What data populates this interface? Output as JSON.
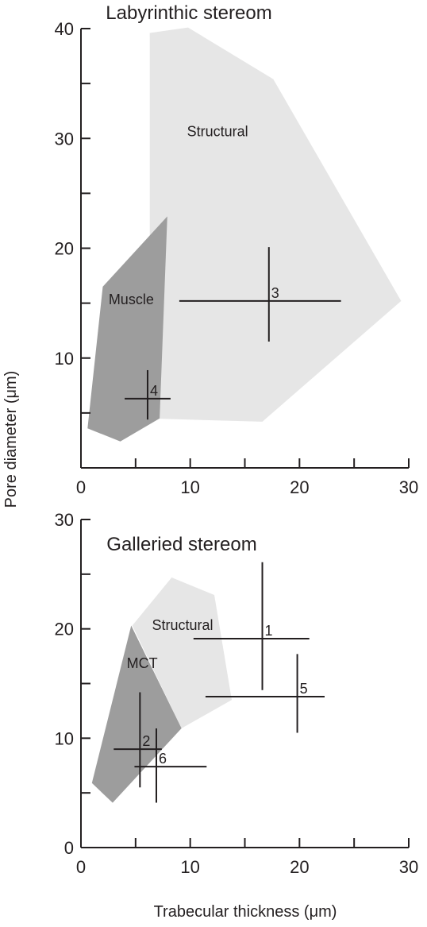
{
  "axis_labels": {
    "y": "Pore diameter (μm)",
    "x": "Trabecular thickness (μm)"
  },
  "colors": {
    "structural": "#e6e6e6",
    "muscle": "#9d9d9d",
    "ink": "#231f20",
    "background": "#ffffff"
  },
  "chart_data": [
    {
      "type": "scatter",
      "title": "Labyrinthic stereom",
      "xlabel": "",
      "ylabel": "",
      "xlim": [
        0,
        30
      ],
      "ylim": [
        0,
        40
      ],
      "x_ticks": [
        0,
        10,
        20,
        30
      ],
      "x_minor_ticks": [
        5,
        15,
        25
      ],
      "y_ticks": [
        10,
        20,
        30,
        40
      ],
      "y_minor_ticks": [
        5,
        15,
        25,
        35
      ],
      "regions": [
        {
          "label": "Structural",
          "color": "#e6e6e6",
          "label_at": [
            12.5,
            30.2
          ],
          "polygon": [
            [
              6.3,
              39.6
            ],
            [
              9.8,
              40.1
            ],
            [
              17.6,
              35.4
            ],
            [
              29.3,
              15.2
            ],
            [
              16.6,
              4.2
            ],
            [
              6.3,
              4.5
            ]
          ]
        },
        {
          "label": "Muscle",
          "color": "#9d9d9d",
          "label_at": [
            4.6,
            14.9
          ],
          "polygon": [
            [
              2.0,
              16.5
            ],
            [
              7.9,
              22.9
            ],
            [
              7.2,
              4.5
            ],
            [
              3.6,
              2.4
            ],
            [
              0.6,
              3.6
            ]
          ]
        }
      ],
      "points": [
        {
          "label": "3",
          "x": 17.2,
          "y": 15.2,
          "x_range": [
            9.0,
            23.8
          ],
          "y_range": [
            11.5,
            20.1
          ]
        },
        {
          "label": "4",
          "x": 6.1,
          "y": 6.3,
          "x_range": [
            4.0,
            8.2
          ],
          "y_range": [
            4.4,
            8.9
          ]
        }
      ]
    },
    {
      "type": "scatter",
      "title": "Galleried stereom",
      "xlabel": "Trabecular thickness (μm)",
      "ylabel": "",
      "xlim": [
        0,
        30
      ],
      "ylim": [
        0,
        30
      ],
      "x_ticks": [
        0,
        10,
        20,
        30
      ],
      "x_minor_ticks": [
        5,
        15,
        25
      ],
      "y_ticks": [
        0,
        10,
        20,
        30
      ],
      "y_minor_ticks": [
        5,
        15,
        25
      ],
      "regions": [
        {
          "label": "Structural",
          "color": "#e6e6e6",
          "label_at": [
            9.3,
            19.9
          ],
          "polygon": [
            [
              4.7,
              20.3
            ],
            [
              8.3,
              24.7
            ],
            [
              12.2,
              23.1
            ],
            [
              13.8,
              13.5
            ],
            [
              9.2,
              10.9
            ]
          ]
        },
        {
          "label": "MCT",
          "color": "#9d9d9d",
          "label_at": [
            5.6,
            16.4
          ],
          "polygon": [
            [
              4.6,
              20.3
            ],
            [
              9.2,
              10.9
            ],
            [
              2.9,
              4.1
            ],
            [
              1.0,
              5.9
            ]
          ]
        }
      ],
      "points": [
        {
          "label": "1",
          "x": 16.6,
          "y": 19.1,
          "x_range": [
            10.3,
            20.9
          ],
          "y_range": [
            14.4,
            26.1
          ]
        },
        {
          "label": "5",
          "x": 19.8,
          "y": 13.8,
          "x_range": [
            11.4,
            22.3
          ],
          "y_range": [
            10.5,
            17.7
          ]
        },
        {
          "label": "2",
          "x": 5.4,
          "y": 9.0,
          "x_range": [
            3.0,
            7.4
          ],
          "y_range": [
            5.5,
            14.2
          ]
        },
        {
          "label": "6",
          "x": 6.9,
          "y": 7.4,
          "x_range": [
            4.9,
            11.5
          ],
          "y_range": [
            4.1,
            10.9
          ]
        }
      ]
    }
  ]
}
